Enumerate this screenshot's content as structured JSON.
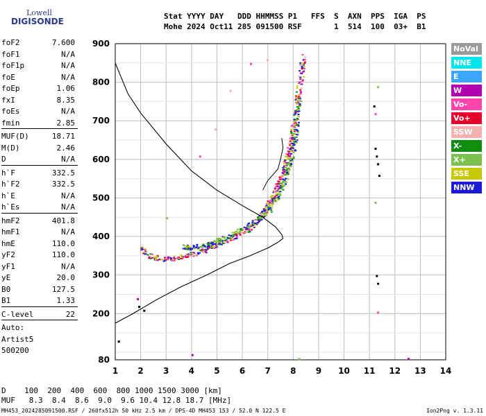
{
  "logo": {
    "line1": "Lowell",
    "line2": "DIGISONDE"
  },
  "header": {
    "labels": [
      "Stat",
      "YYYY",
      "DAY",
      "DDD",
      "HHMMSS",
      "P1",
      "FFS",
      "S",
      "AXN",
      "PPS",
      "IGA",
      "PS"
    ],
    "line1": "Stat YYYY DAY   DDD HHMMSS P1   FFS  S  AXN  PPS  IGA  PS",
    "line2": "Mohe 2024 Oct11 285 091500 RSF       1  514  100  03+  B1"
  },
  "params": [
    {
      "k": "foF2",
      "v": "7.600"
    },
    {
      "k": "foF1",
      "v": "N/A"
    },
    {
      "k": "foF1p",
      "v": "N/A"
    },
    {
      "k": "foE",
      "v": "N/A"
    },
    {
      "k": "foEp",
      "v": "1.06"
    },
    {
      "k": "fxI",
      "v": "8.35"
    },
    {
      "k": "foEs",
      "v": "N/A"
    },
    {
      "k": "fmin",
      "v": "2.85"
    },
    {
      "k": "MUF(D)",
      "v": "18.71"
    },
    {
      "k": "M(D)",
      "v": "2.46"
    },
    {
      "k": "D",
      "v": "N/A"
    },
    {
      "k": "h`F",
      "v": "332.5"
    },
    {
      "k": "h`F2",
      "v": "332.5"
    },
    {
      "k": "h`E",
      "v": "N/A"
    },
    {
      "k": "h`Es",
      "v": "N/A"
    },
    {
      "k": "hmF2",
      "v": "401.8"
    },
    {
      "k": "hmF1",
      "v": "N/A"
    },
    {
      "k": "hmE",
      "v": "110.0"
    },
    {
      "k": "yF2",
      "v": "110.0"
    },
    {
      "k": "yF1",
      "v": "N/A"
    },
    {
      "k": "yE",
      "v": "20.0"
    },
    {
      "k": "B0",
      "v": "127.5"
    },
    {
      "k": "B1",
      "v": "1.33"
    },
    {
      "k": "C-level",
      "v": "22"
    },
    {
      "k": "Auto:",
      "v": ""
    },
    {
      "k": "Artist5",
      "v": ""
    },
    {
      "k": "500200",
      "v": ""
    }
  ],
  "legend": [
    {
      "label": "NoVal",
      "color": "#9a9a9a"
    },
    {
      "label": "NNE",
      "color": "#00e5ee"
    },
    {
      "label": "E",
      "color": "#3ca6ff"
    },
    {
      "label": "W",
      "color": "#b000b0"
    },
    {
      "label": "Vo-",
      "color": "#ff44b0"
    },
    {
      "label": "Vo+",
      "color": "#e8002a"
    },
    {
      "label": "SSW",
      "color": "#f5b0b0"
    },
    {
      "label": "X-",
      "color": "#108c10"
    },
    {
      "label": "X+",
      "color": "#7cc050"
    },
    {
      "label": "SSE",
      "color": "#c8c800"
    },
    {
      "label": "NNW",
      "color": "#1a1ad8"
    }
  ],
  "bottom": {
    "d_row": "D    100  200  400  600  800 1000 1500 3000 [km]",
    "muf_row": "MUF   8.3  8.4  8.6  9.0  9.6 10.4 12.8 18.7 [MHz]"
  },
  "footer": {
    "left": "MH453_2024285091500.RSF / 260fx512h 50 kHz 2.5 km / DPS-4D MH453 153 / 52.0 N 122.5 E",
    "right": "Ion2Png v. 1.3.11"
  },
  "chart_data": {
    "type": "scatter",
    "xlim": [
      1,
      14
    ],
    "ylim": [
      80,
      900
    ],
    "x_ticks": [
      1,
      2,
      3,
      4,
      5,
      6,
      7,
      8,
      9,
      10,
      11,
      12,
      13,
      14
    ],
    "y_ticks": [
      80,
      200,
      300,
      400,
      500,
      600,
      700,
      800,
      900
    ],
    "grid": true,
    "o_trace": {
      "x": [
        2.0,
        2.3,
        2.8,
        3.3,
        3.8,
        4.3,
        4.8,
        5.3,
        5.8,
        6.3,
        6.6,
        6.9,
        7.1,
        7.3,
        7.4,
        7.6,
        7.7,
        7.8,
        7.9,
        8.0,
        8.1,
        8.2,
        8.3,
        8.35
      ],
      "y": [
        370,
        352,
        342,
        345,
        352,
        362,
        375,
        390,
        405,
        425,
        445,
        470,
        495,
        520,
        540,
        565,
        590,
        620,
        650,
        690,
        730,
        780,
        830,
        870
      ]
    },
    "x_trace": {
      "x": [
        3.6,
        4.0,
        4.5,
        5.0,
        5.5,
        6.0,
        6.5,
        7.0,
        7.3,
        7.6,
        7.8,
        8.0,
        8.1,
        8.2
      ],
      "y": [
        375,
        372,
        378,
        390,
        405,
        420,
        440,
        470,
        500,
        540,
        580,
        640,
        700,
        760
      ]
    },
    "profile": {
      "x": [
        1.0,
        1.5,
        2.0,
        3.0,
        4.0,
        5.0,
        6.0,
        6.8,
        7.3,
        7.55,
        7.6,
        7.4,
        7.0,
        6.3,
        5.5,
        4.6,
        3.6,
        2.6,
        1.7,
        1.0
      ],
      "y": [
        850,
        770,
        720,
        640,
        570,
        520,
        480,
        450,
        425,
        405,
        395,
        385,
        370,
        350,
        330,
        300,
        270,
        235,
        200,
        175
      ]
    }
  }
}
